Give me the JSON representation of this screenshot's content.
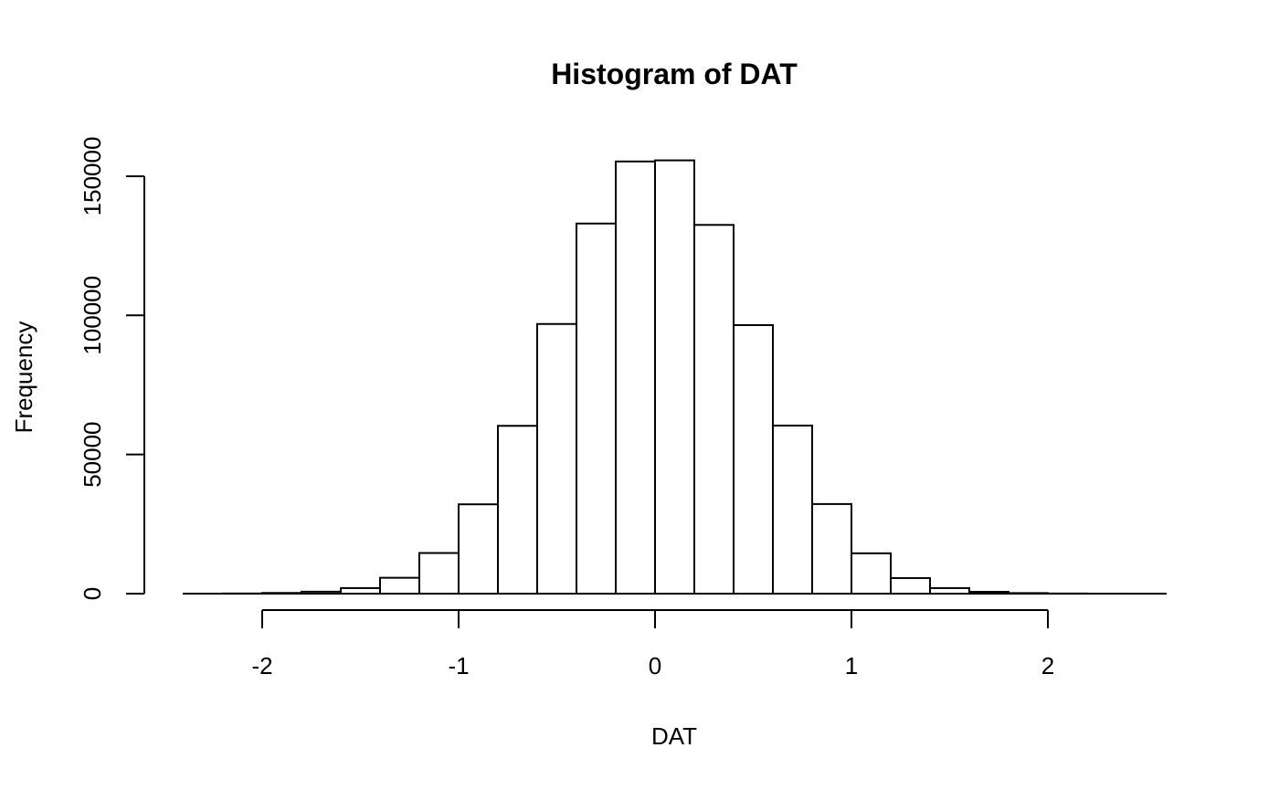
{
  "chart_data": {
    "type": "bar",
    "title": "Histogram of DAT",
    "xlabel": "DAT",
    "ylabel": "Frequency",
    "xlim": [
      -2.4,
      2.6
    ],
    "ylim": [
      0,
      160000
    ],
    "x_ticks": [
      -2,
      -1,
      0,
      1,
      2
    ],
    "y_ticks": [
      0,
      50000,
      100000,
      150000
    ],
    "grid": false,
    "bins": [
      {
        "x0": -2.4,
        "x1": -2.2,
        "count": 10
      },
      {
        "x0": -2.2,
        "x1": -2.0,
        "count": 60
      },
      {
        "x0": -2.0,
        "x1": -1.8,
        "count": 250
      },
      {
        "x0": -1.8,
        "x1": -1.6,
        "count": 700
      },
      {
        "x0": -1.6,
        "x1": -1.4,
        "count": 2000
      },
      {
        "x0": -1.4,
        "x1": -1.2,
        "count": 5700
      },
      {
        "x0": -1.2,
        "x1": -1.0,
        "count": 14600
      },
      {
        "x0": -1.0,
        "x1": -0.8,
        "count": 32100
      },
      {
        "x0": -0.8,
        "x1": -0.6,
        "count": 60300
      },
      {
        "x0": -0.6,
        "x1": -0.4,
        "count": 96900
      },
      {
        "x0": -0.4,
        "x1": -0.2,
        "count": 133000
      },
      {
        "x0": -0.2,
        "x1": 0.0,
        "count": 155300
      },
      {
        "x0": 0.0,
        "x1": 0.2,
        "count": 155700
      },
      {
        "x0": 0.2,
        "x1": 0.4,
        "count": 132500
      },
      {
        "x0": 0.4,
        "x1": 0.6,
        "count": 96500
      },
      {
        "x0": 0.6,
        "x1": 0.8,
        "count": 60400
      },
      {
        "x0": 0.8,
        "x1": 1.0,
        "count": 32200
      },
      {
        "x0": 1.0,
        "x1": 1.2,
        "count": 14500
      },
      {
        "x0": 1.2,
        "x1": 1.4,
        "count": 5600
      },
      {
        "x0": 1.4,
        "x1": 1.6,
        "count": 2000
      },
      {
        "x0": 1.6,
        "x1": 1.8,
        "count": 650
      },
      {
        "x0": 1.8,
        "x1": 2.0,
        "count": 200
      },
      {
        "x0": 2.0,
        "x1": 2.2,
        "count": 50
      },
      {
        "x0": 2.2,
        "x1": 2.4,
        "count": 10
      },
      {
        "x0": 2.4,
        "x1": 2.6,
        "count": 5
      }
    ]
  }
}
